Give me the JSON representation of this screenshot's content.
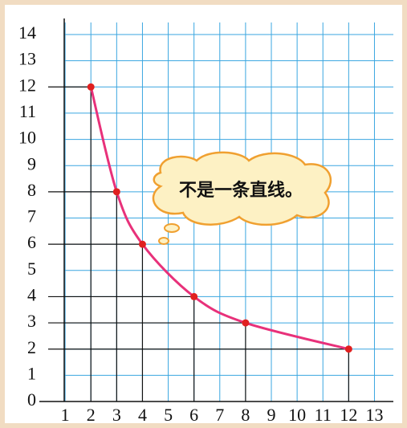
{
  "chart_data": {
    "type": "line",
    "annotation": "不是一条直线。",
    "x": [
      2,
      3,
      4,
      6,
      8,
      12
    ],
    "series": [
      {
        "color": "#e8317a",
        "marker_color": "#e02020",
        "values": [
          12,
          8,
          6,
          4,
          3,
          2
        ]
      }
    ],
    "xlim": [
      0,
      14.2
    ],
    "ylim": [
      0,
      14
    ],
    "xticks": [
      1,
      2,
      3,
      4,
      5,
      6,
      7,
      8,
      9,
      10,
      11,
      12,
      13
    ],
    "yticks": [
      0,
      1,
      2,
      3,
      4,
      5,
      6,
      7,
      8,
      9,
      10,
      11,
      12,
      13,
      14
    ],
    "grid": true,
    "grid_color": "#3aa6e0"
  }
}
